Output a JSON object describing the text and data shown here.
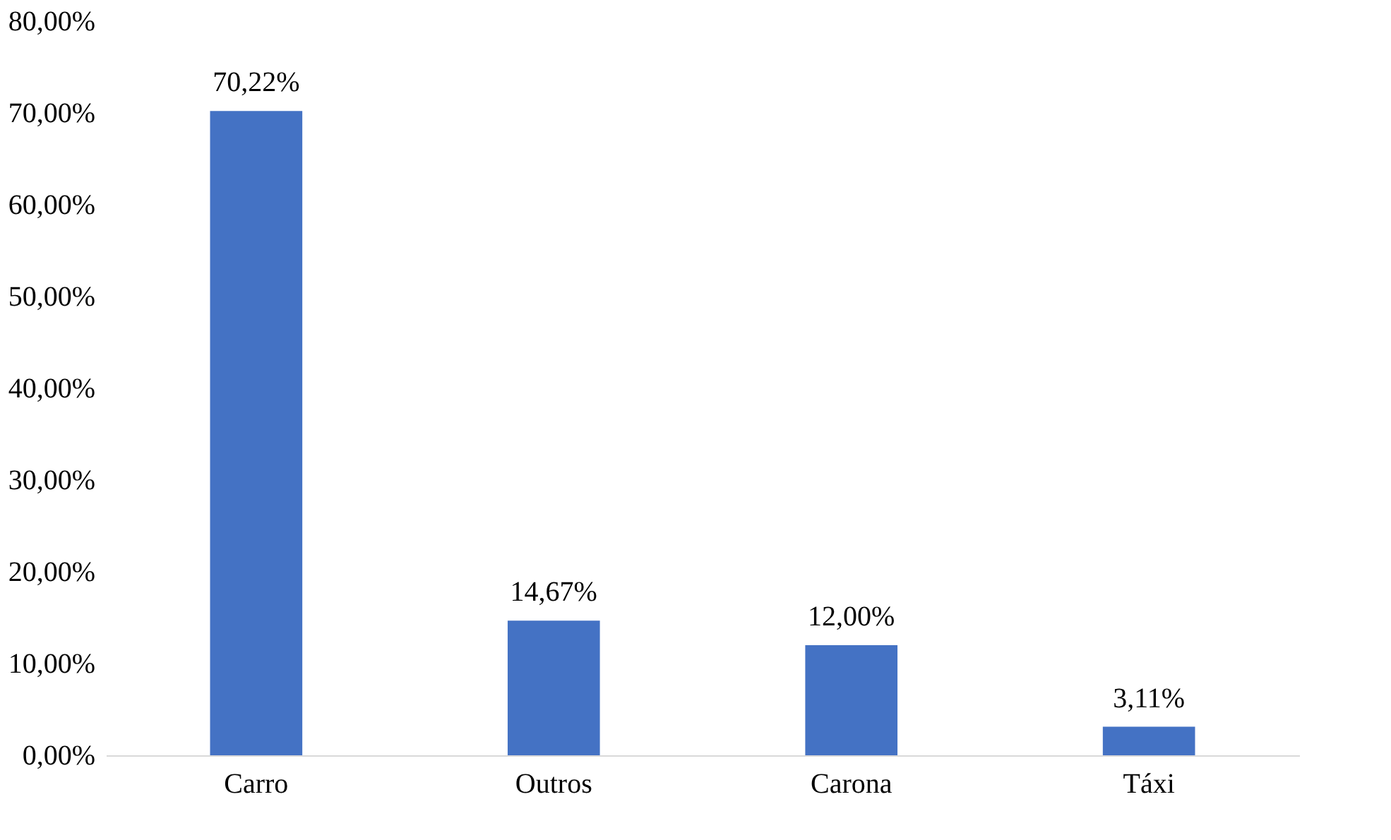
{
  "chart_data": {
    "type": "bar",
    "categories": [
      "Carro",
      "Outros",
      "Carona",
      "Táxi"
    ],
    "values": [
      70.22,
      14.67,
      12.0,
      3.11
    ],
    "value_labels": [
      "70,22%",
      "14,67%",
      "12,00%",
      "3,11%"
    ],
    "color": "#4472c4",
    "ylim": [
      0,
      80
    ],
    "yticks": [
      {
        "value": 0,
        "label": "0,00%"
      },
      {
        "value": 10,
        "label": "10,00%"
      },
      {
        "value": 20,
        "label": "20,00%"
      },
      {
        "value": 30,
        "label": "30,00%"
      },
      {
        "value": 40,
        "label": "40,00%"
      },
      {
        "value": 50,
        "label": "50,00%"
      },
      {
        "value": 60,
        "label": "60,00%"
      },
      {
        "value": 70,
        "label": "70,00%"
      },
      {
        "value": 80,
        "label": "80,00%"
      }
    ],
    "grid": false
  }
}
